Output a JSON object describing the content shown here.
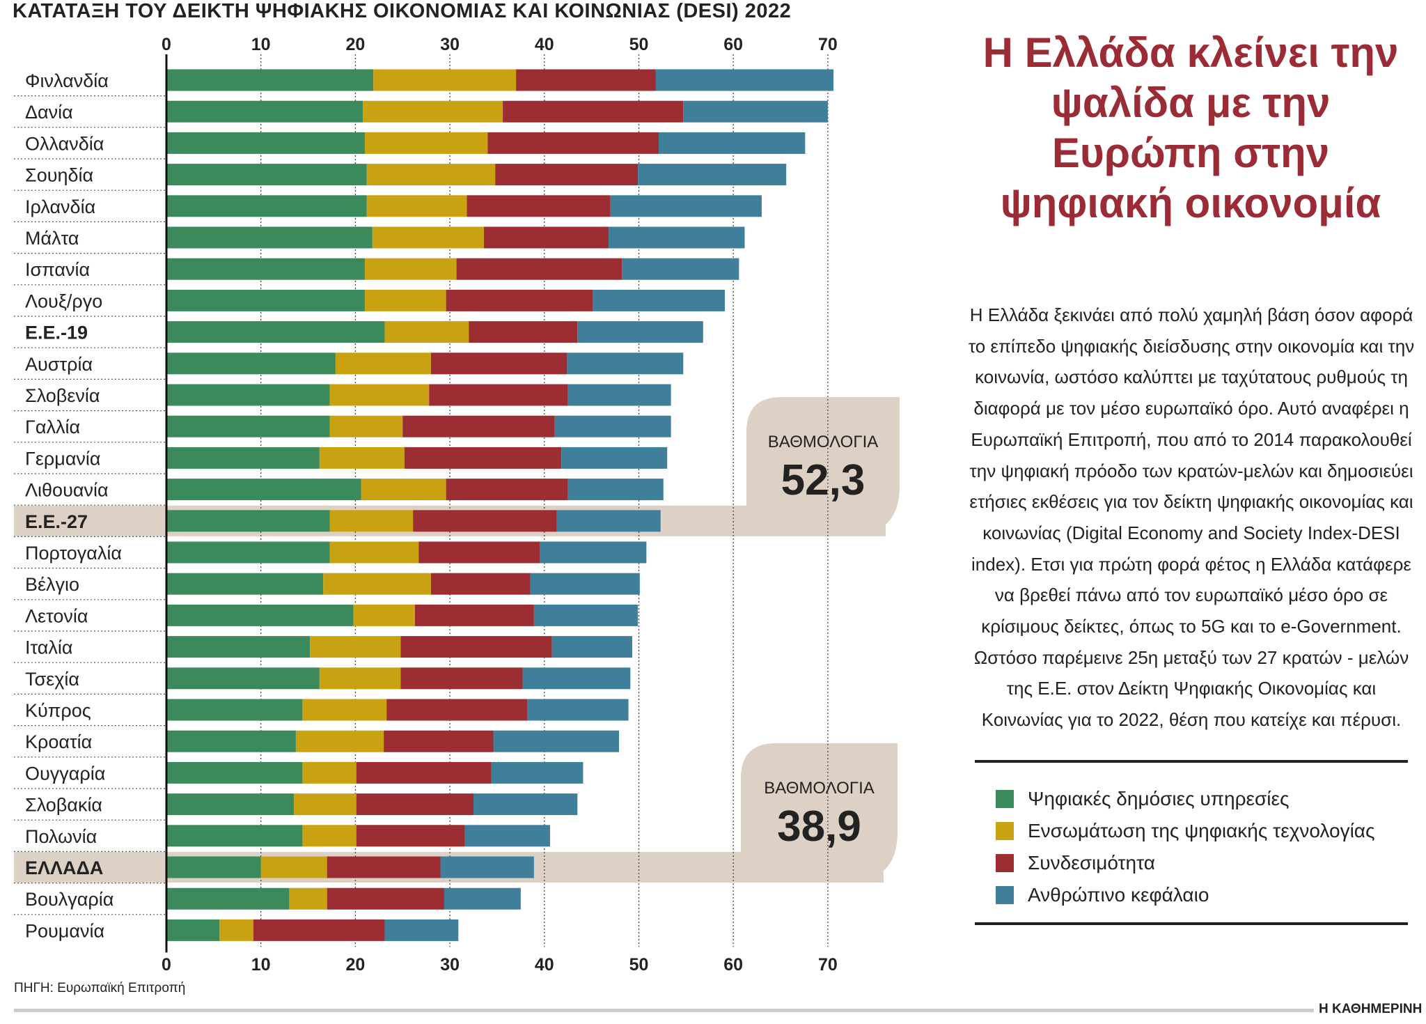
{
  "title": "ΚΑΤΑΤΑΞΗ ΤΟΥ ΔΕΙΚΤΗ ΨΗΦΙΑΚΗΣ ΟΙΚΟΝΟΜΙΑΣ ΚΑΙ ΚΟΙΝΩΝΙΑΣ (DESI) 2022",
  "headline": "Η Ελλάδα κλείνει την ψαλίδα με την Ευρώπη στην ψηφιακή οικονομία",
  "paragraph": "Η Ελλάδα ξεκινάει από πολύ χαμηλή βάση όσον αφορά το επίπεδο ψηφιακής διείσδυσης στην οικονομία και την κοινωνία, ωστόσο καλύπτει με ταχύτατους ρυθμούς τη διαφορά με τον μέσο ευρωπαϊκό όρο. Αυτό αναφέρει η Ευρωπαϊκή Επιτροπή, που από το 2014 παρακολουθεί την ψηφιακή πρόοδο των κρατών-μελών και δημοσιεύει ετήσιες εκθέσεις για τον δείκτη ψηφιακής οικονομίας και κοινωνίας (Digital Economy and Society Index-DESI index). Ετσι για πρώτη φορά φέτος η Ελλάδα κατάφερε να βρεθεί πάνω από τον ευρωπαϊκό μέσο όρο σε κρίσιμους δείκτες, όπως το 5G και το e-Government. Ωστόσο παρέμεινε 25η μεταξύ των 27 κρατών - μελών της Ε.Ε. στον Δείκτη Ψηφιακής Οικονομίας και Κοινωνίας για το 2022, θέση που κατείχε και πέρυσι.",
  "source": "ΠΗΓΗ: Ευρωπαϊκή Επιτροπή",
  "brand": "Η ΚΑΘΗΜΕΡΙΝΗ",
  "callouts": [
    {
      "label": "ΒΑΘΜΟΛΟΓΙΑ",
      "value": "52,3",
      "row": "Ε.Ε.-27"
    },
    {
      "label": "ΒΑΘΜΟΛΟΓΙΑ",
      "value": "38,9",
      "row": "ΕΛΛΑΔΑ"
    }
  ],
  "chart_data": {
    "type": "bar",
    "orientation": "horizontal",
    "stacked": true,
    "xlim": [
      0,
      70
    ],
    "xticks": [
      "0",
      "10",
      "20",
      "30",
      "40",
      "50",
      "60",
      "70"
    ],
    "grid": true,
    "legend_position": "right",
    "highlight_rows": [
      "Ε.Ε.-27",
      "ΕΛΛΑΔΑ"
    ],
    "bold_rows": [
      "Ε.Ε.-19",
      "Ε.Ε.-27",
      "ΕΛΛΑΔΑ"
    ],
    "categories": [
      "Φινλανδία",
      "Δανία",
      "Ολλανδία",
      "Σουηδία",
      "Ιρλανδία",
      "Μάλτα",
      "Ισπανία",
      "Λουξ/ργο",
      "Ε.Ε.-19",
      "Αυστρία",
      "Σλοβενία",
      "Γαλλία",
      "Γερμανία",
      "Λιθουανία",
      "Ε.Ε.-27",
      "Πορτογαλία",
      "Βέλγιο",
      "Λετονία",
      "Ιταλία",
      "Τσεχία",
      "Κύπρος",
      "Κροατία",
      "Ουγγαρία",
      "Σλοβακία",
      "Πολωνία",
      "ΕΛΛΑΔΑ",
      "Βουλγαρία",
      "Ρουμανία"
    ],
    "series": [
      {
        "name": "Ψηφιακές δημόσιες υπηρεσίες",
        "color": "#3a8a5c",
        "values": [
          21.9,
          20.8,
          21.0,
          21.2,
          21.2,
          21.8,
          21.0,
          21.0,
          23.1,
          17.9,
          17.3,
          17.3,
          16.2,
          20.6,
          17.3,
          17.3,
          16.6,
          19.8,
          15.2,
          16.2,
          14.4,
          13.7,
          14.4,
          13.5,
          14.4,
          10.0,
          13.0,
          5.6
        ]
      },
      {
        "name": "Ενσωμάτωση της ψηφιακής τεχνολογίας",
        "color": "#c9a212",
        "values": [
          15.1,
          14.8,
          13.0,
          13.6,
          10.6,
          11.8,
          9.7,
          8.6,
          8.9,
          10.1,
          10.5,
          7.7,
          9.0,
          9.0,
          8.8,
          9.4,
          11.4,
          6.5,
          9.6,
          8.6,
          8.9,
          9.3,
          5.7,
          6.6,
          5.7,
          7.0,
          4.0,
          3.6
        ]
      },
      {
        "name": "Συνδεσιμότητα",
        "color": "#9b2d33",
        "values": [
          14.8,
          19.1,
          18.1,
          15.1,
          15.2,
          13.2,
          17.5,
          15.5,
          11.5,
          14.4,
          14.7,
          16.1,
          16.6,
          12.9,
          15.2,
          12.8,
          10.5,
          12.6,
          16.0,
          12.9,
          14.9,
          11.6,
          14.3,
          12.4,
          11.5,
          12.0,
          12.4,
          13.9
        ]
      },
      {
        "name": "Ανθρώπινο κεφάλαιο",
        "color": "#3f7f9a",
        "values": [
          18.8,
          15.3,
          15.5,
          15.7,
          16.0,
          14.4,
          12.4,
          14.0,
          13.3,
          12.3,
          10.9,
          12.3,
          11.2,
          10.1,
          11.0,
          11.3,
          11.6,
          11.0,
          8.5,
          11.4,
          10.7,
          13.3,
          9.7,
          11.0,
          9.0,
          9.9,
          8.1,
          7.8
        ]
      }
    ]
  }
}
